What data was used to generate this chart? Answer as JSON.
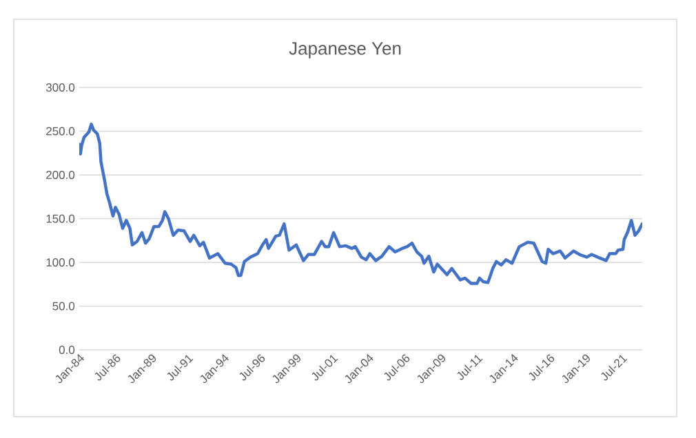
{
  "chart_data": {
    "type": "line",
    "title": "Japanese Yen",
    "color": "#4472c4",
    "grid": "y",
    "line_style": "solid",
    "marker": "none",
    "legend": false,
    "x": [
      "1984-01",
      "1984-02",
      "1984-03",
      "1984-05",
      "1984-09",
      "1984-11",
      "1985-01",
      "1985-04",
      "1985-06",
      "1985-07",
      "1985-10",
      "1985-12",
      "1986-02",
      "1986-05",
      "1986-07",
      "1986-10",
      "1987-01",
      "1987-04",
      "1987-07",
      "1987-09",
      "1988-01",
      "1988-05",
      "1988-08",
      "1988-11",
      "1989-03",
      "1989-07",
      "1989-10",
      "1989-12",
      "1990-03",
      "1990-07",
      "1990-11",
      "1991-04",
      "1991-09",
      "1991-12",
      "1992-05",
      "1992-08",
      "1993-01",
      "1993-08",
      "1994-02",
      "1994-07",
      "1994-11",
      "1995-01",
      "1995-03",
      "1995-06",
      "1995-11",
      "1996-05",
      "1996-09",
      "1996-12",
      "1997-02",
      "1997-05",
      "1997-08",
      "1997-11",
      "1998-03",
      "1998-05",
      "1998-07",
      "1999-01",
      "1999-07",
      "1999-11",
      "2000-04",
      "2000-10",
      "2001-01",
      "2001-04",
      "2001-08",
      "2002-01",
      "2002-06",
      "2002-11",
      "2003-02",
      "2003-07",
      "2003-11",
      "2004-02",
      "2004-07",
      "2004-12",
      "2005-06",
      "2005-11",
      "2006-05",
      "2006-09",
      "2007-01",
      "2007-05",
      "2007-09",
      "2007-11",
      "2008-03",
      "2008-07",
      "2008-10",
      "2009-06",
      "2009-10",
      "2010-05",
      "2010-09",
      "2011-02",
      "2011-07",
      "2011-09",
      "2011-12",
      "2012-04",
      "2012-08",
      "2012-11",
      "2013-03",
      "2013-07",
      "2013-12",
      "2014-06",
      "2015-01",
      "2015-06",
      "2015-10",
      "2016-01",
      "2016-04",
      "2016-06",
      "2016-10",
      "2017-04",
      "2017-08",
      "2018-03",
      "2018-08",
      "2019-02",
      "2019-06",
      "2019-11",
      "2020-06",
      "2020-09",
      "2021-02",
      "2021-04",
      "2021-08",
      "2021-09",
      "2021-12",
      "2022-03",
      "2022-06",
      "2022-09",
      "2022-12"
    ],
    "values": [
      235,
      224,
      234,
      243,
      249,
      258,
      251,
      247,
      236,
      215,
      194,
      178,
      169,
      153,
      163,
      155,
      139,
      148,
      139,
      120,
      124,
      134,
      122,
      127,
      141,
      141,
      148,
      158,
      150,
      131,
      137,
      136,
      124,
      131,
      119,
      123,
      105,
      110,
      99,
      98,
      94,
      85,
      85,
      101,
      106,
      110,
      120,
      126,
      116,
      123,
      130,
      131,
      144,
      129,
      114,
      120,
      102,
      109,
      109,
      124,
      118,
      118,
      134,
      118,
      119,
      116,
      118,
      106,
      103,
      110,
      102,
      107,
      118,
      112,
      116,
      118,
      122,
      112,
      107,
      99,
      107,
      89,
      98,
      86,
      93,
      80,
      82,
      76,
      76,
      82,
      78,
      77,
      93,
      101,
      97,
      103,
      99,
      118,
      123,
      122,
      110,
      101,
      99,
      115,
      110,
      113,
      105,
      113,
      109,
      106,
      109,
      106,
      102,
      110,
      110,
      114,
      115,
      126,
      135,
      148,
      131,
      136,
      144
    ],
    "xlim": [
      "1984-01",
      "2022-12"
    ],
    "xticks": [
      {
        "value": "1984-01",
        "label": "Jan-84"
      },
      {
        "value": "1986-07",
        "label": "Jul-86"
      },
      {
        "value": "1989-01",
        "label": "Jan-89"
      },
      {
        "value": "1991-07",
        "label": "Jul-91"
      },
      {
        "value": "1994-01",
        "label": "Jan-94"
      },
      {
        "value": "1996-07",
        "label": "Jul-96"
      },
      {
        "value": "1999-01",
        "label": "Jan-99"
      },
      {
        "value": "2001-07",
        "label": "Jul-01"
      },
      {
        "value": "2004-01",
        "label": "Jan-04"
      },
      {
        "value": "2006-07",
        "label": "Jul-06"
      },
      {
        "value": "2009-01",
        "label": "Jan-09"
      },
      {
        "value": "2011-07",
        "label": "Jul-11"
      },
      {
        "value": "2014-01",
        "label": "Jan-14"
      },
      {
        "value": "2016-07",
        "label": "Jul-16"
      },
      {
        "value": "2019-01",
        "label": "Jan-19"
      },
      {
        "value": "2021-07",
        "label": "Jul-21"
      }
    ],
    "ylim": [
      0,
      300
    ],
    "yticks": [
      {
        "value": 0,
        "label": "0.0"
      },
      {
        "value": 50,
        "label": "50.0"
      },
      {
        "value": 100,
        "label": "100.0"
      },
      {
        "value": 150,
        "label": "150.0"
      },
      {
        "value": 200,
        "label": "200.0"
      },
      {
        "value": 250,
        "label": "250.0"
      },
      {
        "value": 300,
        "label": "300.0"
      }
    ]
  }
}
